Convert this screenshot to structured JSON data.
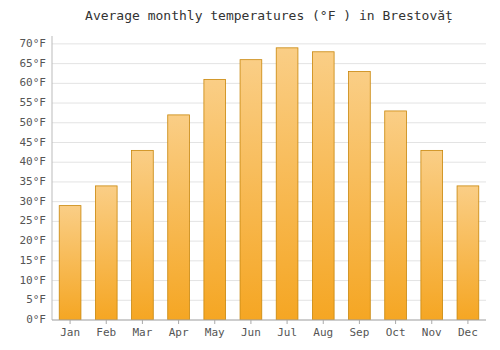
{
  "chart_data": {
    "type": "bar",
    "title": "Average monthly temperatures (°F ) in Brestovăț",
    "categories": [
      "Jan",
      "Feb",
      "Mar",
      "Apr",
      "May",
      "Jun",
      "Jul",
      "Aug",
      "Sep",
      "Oct",
      "Nov",
      "Dec"
    ],
    "values": [
      29,
      34,
      43,
      52,
      61,
      66,
      69,
      68,
      63,
      53,
      43,
      34
    ],
    "color": "#F5A623",
    "ylim": [
      0,
      72
    ],
    "yticks": [
      {
        "value": 0,
        "label": "0°F"
      },
      {
        "value": 5,
        "label": "5°F"
      },
      {
        "value": 10,
        "label": "10°F"
      },
      {
        "value": 15,
        "label": "15°F"
      },
      {
        "value": 20,
        "label": "20°F"
      },
      {
        "value": 25,
        "label": "25°F"
      },
      {
        "value": 30,
        "label": "30°F"
      },
      {
        "value": 35,
        "label": "35°F"
      },
      {
        "value": 40,
        "label": "40°F"
      },
      {
        "value": 45,
        "label": "45°F"
      },
      {
        "value": 50,
        "label": "50°F"
      },
      {
        "value": 55,
        "label": "55°F"
      },
      {
        "value": 60,
        "label": "60°F"
      },
      {
        "value": 65,
        "label": "65°F"
      },
      {
        "value": 70,
        "label": "70°F"
      }
    ],
    "grid": true
  }
}
